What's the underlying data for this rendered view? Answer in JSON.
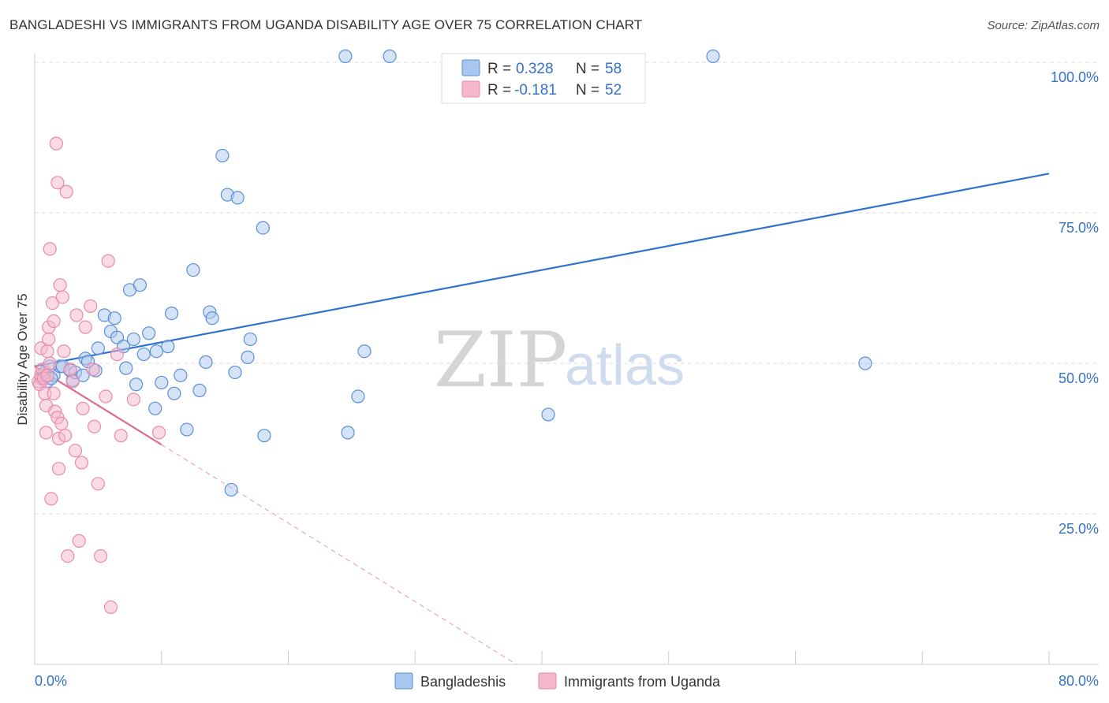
{
  "header": {
    "title": "BANGLADESHI VS IMMIGRANTS FROM UGANDA DISABILITY AGE OVER 75 CORRELATION CHART",
    "source": "Source: ZipAtlas.com"
  },
  "watermark": {
    "zip": "ZIP",
    "atlas": "atlas"
  },
  "colors": {
    "blue_fill": "#a9c7ee",
    "blue_stroke": "#5b8fd6",
    "blue_line": "#2f72d0",
    "blue_text": "#3472c9",
    "pink_fill": "#f5b8cb",
    "pink_stroke": "#e98aa9",
    "pink_line": "#e06a95",
    "grid": "#dddddd",
    "axis": "#cccccc"
  },
  "chart_data": {
    "type": "scatter",
    "title": "BANGLADESHI VS IMMIGRANTS FROM UGANDA DISABILITY AGE OVER 75 CORRELATION CHART",
    "xlabel": "",
    "ylabel": "Disability Age Over 75",
    "xlim": [
      0,
      80
    ],
    "ylim": [
      0,
      105
    ],
    "x_tick_labels": [
      "0.0%",
      "80.0%"
    ],
    "y_ticks": [
      25,
      50,
      75,
      100
    ],
    "y_tick_labels": [
      "25.0%",
      "50.0%",
      "75.0%",
      "100.0%"
    ],
    "grid": true,
    "legend_position": "top-center",
    "stats": [
      {
        "r_label": "R =",
        "r_value": "0.328",
        "n_label": "N =",
        "n_value": "58"
      },
      {
        "r_label": "R =",
        "r_value": "-0.181",
        "n_label": "N =",
        "n_value": "52"
      }
    ],
    "series": [
      {
        "name": "Bangladeshis",
        "trend": {
          "x": [
            0,
            80
          ],
          "y": [
            49.5,
            81.5
          ],
          "extrapolated_to": null
        },
        "points": [
          [
            0.5,
            47.5
          ],
          [
            0.8,
            48.5
          ],
          [
            1.0,
            47.0
          ],
          [
            1.2,
            49.5
          ],
          [
            1.5,
            48.0
          ],
          [
            2.0,
            49.5
          ],
          [
            2.2,
            49.5
          ],
          [
            2.8,
            48.8
          ],
          [
            3.0,
            47.2
          ],
          [
            3.2,
            48.5
          ],
          [
            3.8,
            48.0
          ],
          [
            4.0,
            50.8
          ],
          [
            4.2,
            50.3
          ],
          [
            4.8,
            48.8
          ],
          [
            5.0,
            52.5
          ],
          [
            5.5,
            58.0
          ],
          [
            6.0,
            55.3
          ],
          [
            6.3,
            57.5
          ],
          [
            6.5,
            54.3
          ],
          [
            7.0,
            52.8
          ],
          [
            7.2,
            49.2
          ],
          [
            7.5,
            62.2
          ],
          [
            7.8,
            54.0
          ],
          [
            8.0,
            46.5
          ],
          [
            8.3,
            63.0
          ],
          [
            8.6,
            51.5
          ],
          [
            9.0,
            55.0
          ],
          [
            9.5,
            42.5
          ],
          [
            9.6,
            52.0
          ],
          [
            10.0,
            46.8
          ],
          [
            10.5,
            52.8
          ],
          [
            10.8,
            58.3
          ],
          [
            11.0,
            45.0
          ],
          [
            11.5,
            48.0
          ],
          [
            12.0,
            39.0
          ],
          [
            12.5,
            65.5
          ],
          [
            13.0,
            45.5
          ],
          [
            13.5,
            50.2
          ],
          [
            13.8,
            58.5
          ],
          [
            14.0,
            57.5
          ],
          [
            14.8,
            84.5
          ],
          [
            15.2,
            78.0
          ],
          [
            15.5,
            29.0
          ],
          [
            15.8,
            48.5
          ],
          [
            16.0,
            77.5
          ],
          [
            16.8,
            51.0
          ],
          [
            17.0,
            54.0
          ],
          [
            18.0,
            72.5
          ],
          [
            18.1,
            38.0
          ],
          [
            24.5,
            101.0
          ],
          [
            24.7,
            38.5
          ],
          [
            25.5,
            44.5
          ],
          [
            26.0,
            52.0
          ],
          [
            28.0,
            101.0
          ],
          [
            40.5,
            41.5
          ],
          [
            53.5,
            101.0
          ],
          [
            65.5,
            50.0
          ],
          [
            1.3,
            47.5
          ]
        ]
      },
      {
        "name": "Immigrants from Uganda",
        "trend": {
          "x": [
            0,
            10
          ],
          "y": [
            49.5,
            36.5
          ],
          "extrapolated_to": {
            "x": 38,
            "y": 0
          }
        },
        "points": [
          [
            0.3,
            47.0
          ],
          [
            0.4,
            46.5
          ],
          [
            0.5,
            48.0
          ],
          [
            0.5,
            52.5
          ],
          [
            0.6,
            49.0
          ],
          [
            0.7,
            47.5
          ],
          [
            0.8,
            45.0
          ],
          [
            0.9,
            43.0
          ],
          [
            0.9,
            38.5
          ],
          [
            1.0,
            48.0
          ],
          [
            1.0,
            52.0
          ],
          [
            1.1,
            56.0
          ],
          [
            1.1,
            54.0
          ],
          [
            1.2,
            50.0
          ],
          [
            1.2,
            69.0
          ],
          [
            1.3,
            27.5
          ],
          [
            1.4,
            60.0
          ],
          [
            1.5,
            57.0
          ],
          [
            1.5,
            45.0
          ],
          [
            1.6,
            42.0
          ],
          [
            1.7,
            86.5
          ],
          [
            1.8,
            80.0
          ],
          [
            1.8,
            41.0
          ],
          [
            1.9,
            37.5
          ],
          [
            1.9,
            32.5
          ],
          [
            2.0,
            63.0
          ],
          [
            2.1,
            40.0
          ],
          [
            2.2,
            61.0
          ],
          [
            2.3,
            52.0
          ],
          [
            2.4,
            38.0
          ],
          [
            2.5,
            78.5
          ],
          [
            2.8,
            49.0
          ],
          [
            3.0,
            47.0
          ],
          [
            3.2,
            35.5
          ],
          [
            3.3,
            58.0
          ],
          [
            3.5,
            20.5
          ],
          [
            3.7,
            33.5
          ],
          [
            3.8,
            42.5
          ],
          [
            4.0,
            56.0
          ],
          [
            4.4,
            59.5
          ],
          [
            4.6,
            49.0
          ],
          [
            4.7,
            39.5
          ],
          [
            5.0,
            30.0
          ],
          [
            5.2,
            18.0
          ],
          [
            5.6,
            44.5
          ],
          [
            5.8,
            67.0
          ],
          [
            6.0,
            9.5
          ],
          [
            6.5,
            51.5
          ],
          [
            6.8,
            38.0
          ],
          [
            7.8,
            44.0
          ],
          [
            9.8,
            38.5
          ],
          [
            2.6,
            18.0
          ]
        ]
      }
    ]
  },
  "legend": {
    "items": [
      {
        "label": "Bangladeshis"
      },
      {
        "label": "Immigrants from Uganda"
      }
    ]
  }
}
